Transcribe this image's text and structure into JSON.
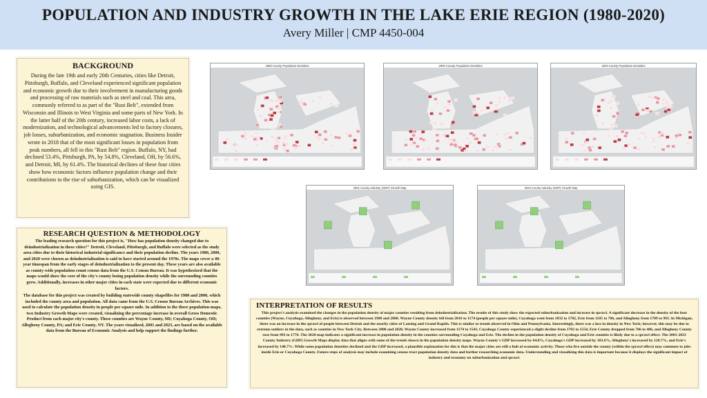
{
  "header": {
    "title": "POPULATION AND INDUSTRY GROWTH IN THE LAKE ERIE REGION (1980-2020)",
    "subtitle": "Avery Miller | CMP 4450-004"
  },
  "background": {
    "heading": "BACKGROUND",
    "text": "During the late 19th and early 20th Centuries, cities like Detroit, Pittsburgh, Buffalo, and Cleveland experienced significant population and economic growth due to their involvement in manufacturing goods and processing of raw materials such as steel and coal. This area, commonly referred to as part of the \"Rust Belt\", extended from Wisconsin and Illinois to West Virginia and some parts of New York. In the latter half of the 20th century, increased labor costs, a lack of modernization, and technological advancements led to factory closures, job losses, suburbanization, and economic stagnation. Business Insider wrote in 2018 that of the most significant losses in population from peak numbers, all fell in this \"Rust Belt\" region. Buffalo, NY, had declined 53.4%, Pittsburgh, PA, by 54.8%, Cleveland, OH, by 56.6%, and Detroit, MI, by 61.4%. The historical declines of these four cities show how economic factors influence population change and their contributions to the rise of suburbanization, which can be visualized using GIS."
  },
  "research": {
    "heading": "RESEARCH QUESTION & METHODOLOGY",
    "p1": "The leading research question for this project is, \"How has population density changed due to deindustrialization in these cities?\" Detroit, Cleveland, Pittsburgh, and Buffalo were selected as the study area cities due to their historical industrial significance and their population decline. The years 1980, 2000, and 2020 were chosen as deindustrialization is said to have started around the 1970s. The maps cover a 40-year timespan from the early stages of deindustrialization to the present day. These years are also available as county-wide population count census data from the U.S. Census Bureau. It was hypothesized that the maps would show the core of the city's county losing population density while the surrounding counties grew. Additionally, increases in other major cities in each state were expected due to different economic factors.",
    "p2": "The database for this project was created by building statewide county shapefiles for 1980 and 2000, which included the county area and population. All data came from the U.S. Census Bureau Archives. This was used to calculate the population density in people per square mile. In addition to the three population maps, two Industry Growth Maps were created, visualizing the percentage increase in overall Gross Domestic Product from each major city's county. These counties are Wayne County, MI; Cuyahoga County, OH; Allegheny County, PA; and Erie County, NY. The years visualized, 2001 and 2023, are based on the available data from the Bureau of Economic Analysis and help support the findings further."
  },
  "interpretation": {
    "heading": "INTERPRETATION OF RESULTS",
    "text": "This project's analysis examined the changes in the population density of major counties resulting from deindustrialization. The results of this study show the expected suburbanization and increase in sprawl. A significant decrease in the density of the four counties (Wayne, Cuyahoga, Allegheny, and Erie) is observed between 1980 and 2000. Wayne County density fell from 2016 to 1174 (people per square mile), Cuyahoga went from 1832 to 1702, Erie from 1105 to 706, and Allegheny from 1709 to 993. In Michigan, there was an increase in the sprawl of people between Detroit and the nearby cities of Lansing and Grand Rapids. This is similar to trends observed in Ohio and Pennsylvania. Interestingly, there was a loss in density in New York; however, this may be due to extreme outliers in the data, such as counties in New York City. Between 2000 and 2020, Wayne County increased from 1174 to 1543, Cuyahoga County experienced a slight decline from 1702 to 1554, Erie County dropped from 706 to 486, and Allegheny County rose from 993 to 1776. The 2020 map indicates a significant increase in population density in the counties surrounding Cuyahoga and Erie. The decline in the population density of Cuyahoga and Erie counties is likely due to a sprawl effect. The 2001-2023 County Industry (GDP) Growth Maps display data that aligns with some of the trends shown in the population density maps. Wayne County's GDP increased by 64.8%, Cuyahoga's GDP increased by 103.6%, Allegheny's increased by 128.7%, and Erie's increased by 140.7%. While some population densities declined and the GDP increased, a plausible explanation for this is that the major cities are still a hub of economic activity. Those who live outside the county (within the sprawl effect) may commute to jobs inside Erie or Cuyahoga County. Future steps of analysis may include examining census tract population density data and further researching economic data. Understanding and visualizing this data is important because it displays the significant impact of industry and economy on suburbanization and sprawl."
  },
  "maps": {
    "m1980": "1980 County Population Densities",
    "m2000": "2000 County Population Densities",
    "m2020": "2020 County Population Densities",
    "g2001": "2001 County Industry (GDP) Growth Map",
    "g2023": "2023 County Industry (GDP) Growth Map"
  },
  "colors": {
    "header_bg": "#cfe0f4",
    "box_bg": "#fdf3d5",
    "lake": "#d2d5d8",
    "land": "#f1f1f1",
    "density_low": "#f6dfe2",
    "density_mid": "#e59aa2",
    "density_high": "#b83a44",
    "gdp": "#8fcf7e"
  }
}
